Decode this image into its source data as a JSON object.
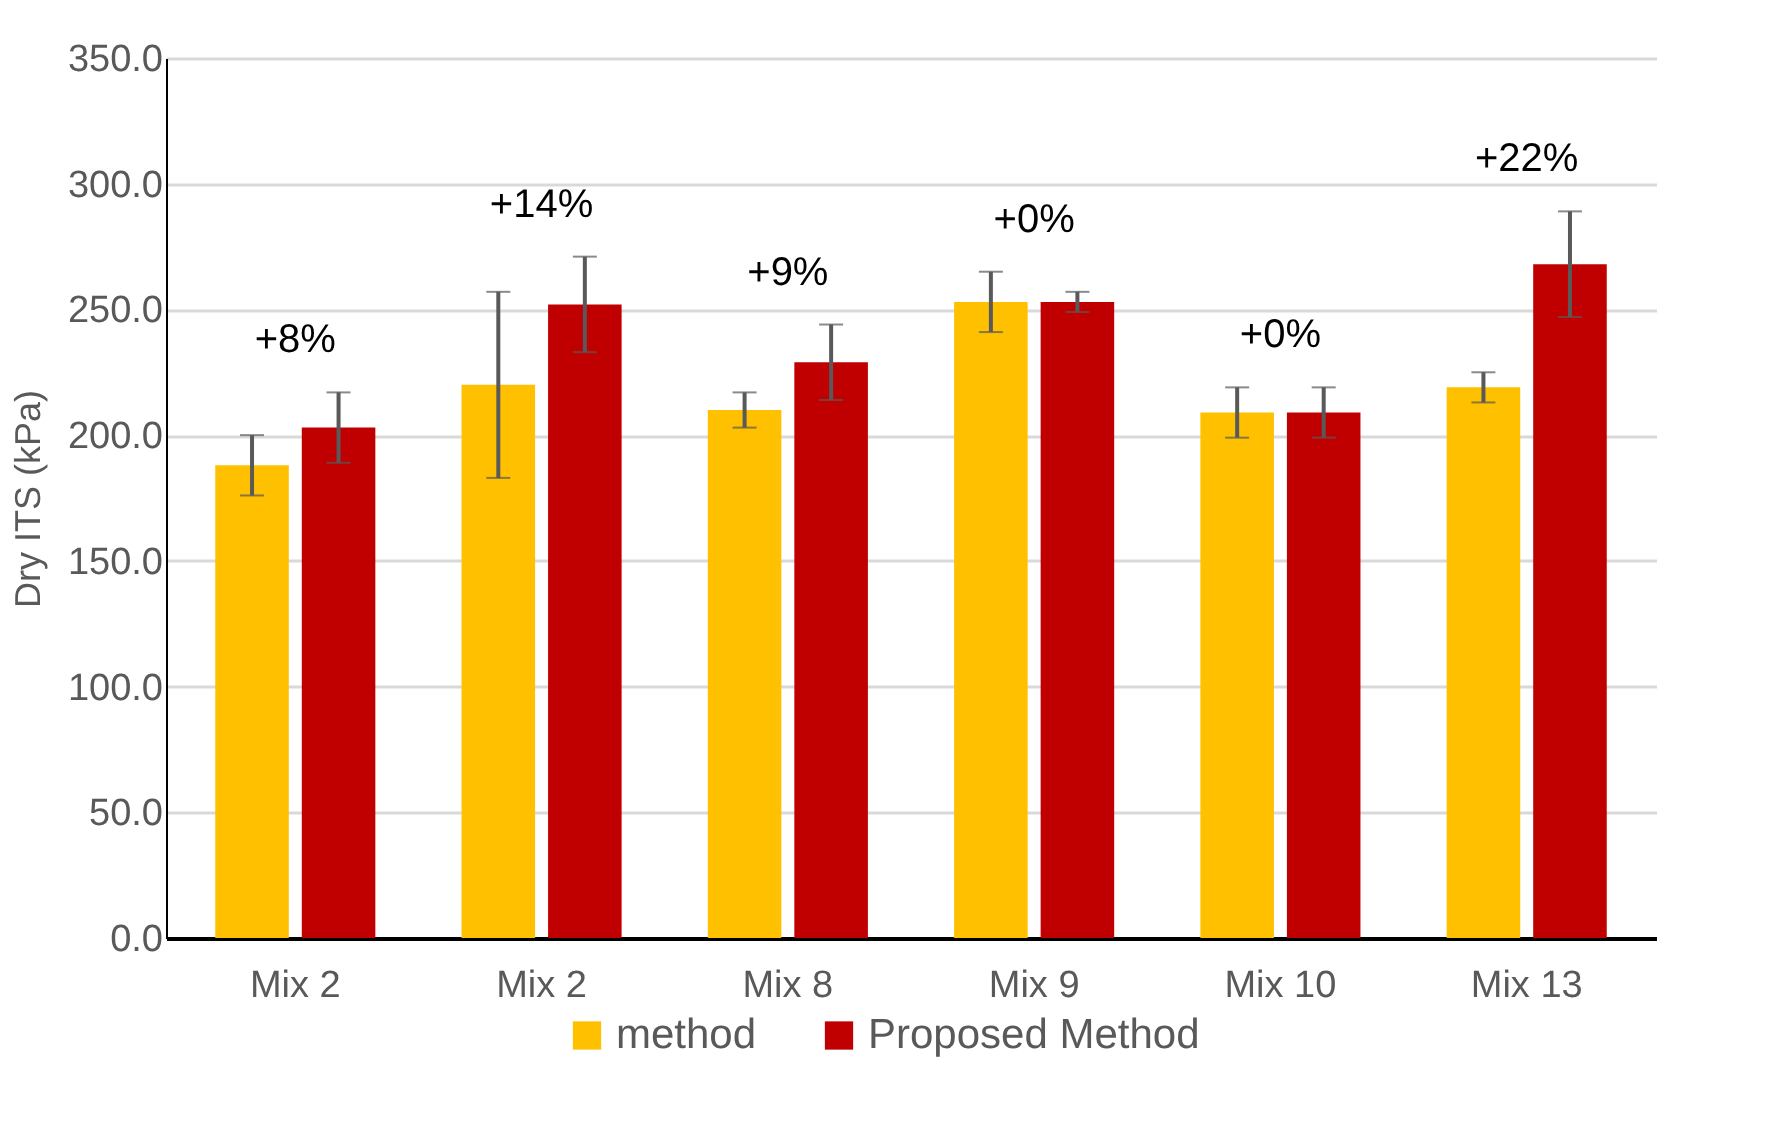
{
  "chart_data": {
    "type": "bar",
    "ylabel": "Dry ITS (kPa)",
    "categories": [
      "Mix 2",
      "Mix 2",
      "Mix 8",
      "Mix 9",
      "Mix 10",
      "Mix 13"
    ],
    "series": [
      {
        "name": "method",
        "color": "#ffc000",
        "values": [
          188,
          220,
          210,
          253,
          209,
          219
        ],
        "errors": [
          12,
          37,
          7,
          12,
          10,
          6
        ]
      },
      {
        "name": "Proposed Method",
        "color": "#c00000",
        "values": [
          203,
          252,
          229,
          253,
          209,
          268
        ],
        "errors": [
          14,
          19,
          15,
          4,
          10,
          21
        ]
      }
    ],
    "ylim": [
      0,
      350
    ],
    "yticks": [
      {
        "value": 0,
        "label": "0.0"
      },
      {
        "value": 50,
        "label": "50.0"
      },
      {
        "value": 100,
        "label": "100.0"
      },
      {
        "value": 150,
        "label": "150.0"
      },
      {
        "value": 200,
        "label": "200.0"
      },
      {
        "value": 250,
        "label": "250.0"
      },
      {
        "value": 300,
        "label": "300.0"
      },
      {
        "value": 350,
        "label": "350.0"
      }
    ],
    "grid": "y",
    "legend": "bottom",
    "annotations": [
      "+8%",
      "+14%",
      "+9%",
      "+0%",
      "+0%",
      "+22%"
    ]
  }
}
